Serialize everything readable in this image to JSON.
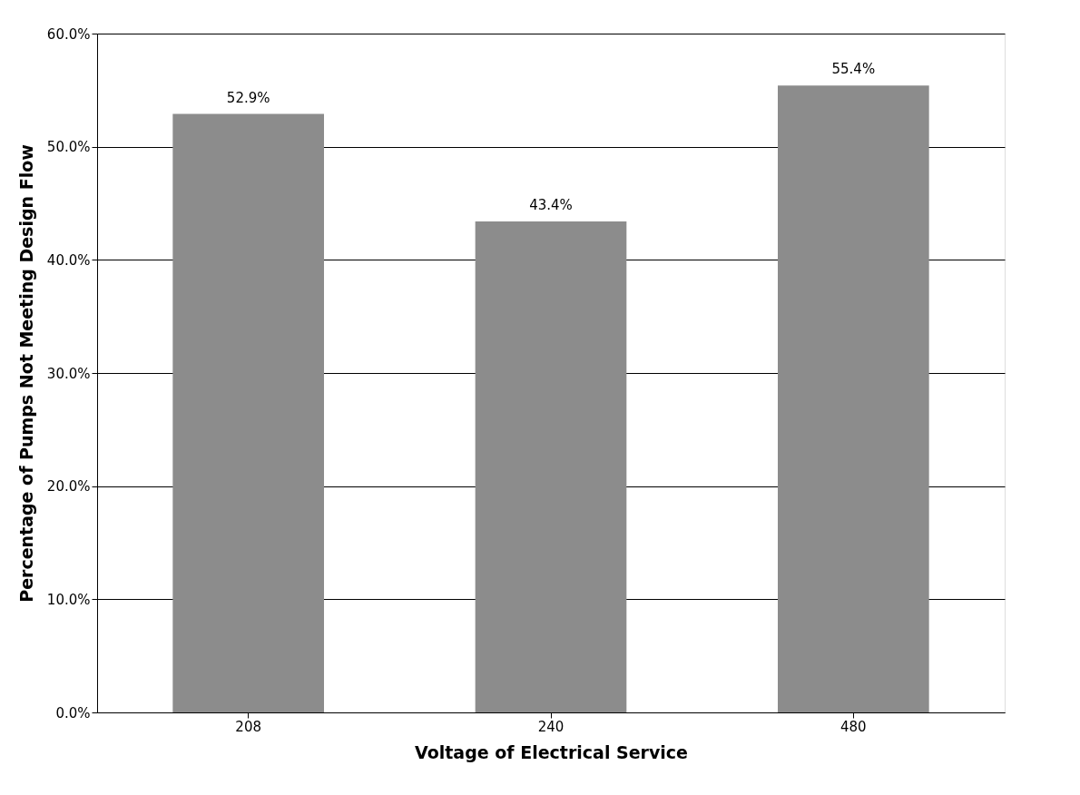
{
  "chart_data": {
    "type": "bar",
    "xlabel": "Voltage of Electrical Service",
    "ylabel": "Percentage of Pumps Not Meeting Design Flow",
    "categories": [
      "208",
      "240",
      "480"
    ],
    "values": [
      52.9,
      43.4,
      55.4
    ],
    "value_labels": [
      "52.9%",
      "43.4%",
      "55.4%"
    ],
    "color": "#8c8c8c",
    "ylim": [
      0,
      60
    ],
    "yticks": [
      {
        "value": 0,
        "label": "0.0%"
      },
      {
        "value": 10,
        "label": "10.0%"
      },
      {
        "value": 20,
        "label": "20.0%"
      },
      {
        "value": 30,
        "label": "30.0%"
      },
      {
        "value": 40,
        "label": "40.0%"
      },
      {
        "value": 50,
        "label": "50.0%"
      },
      {
        "value": 60,
        "label": "60.0%"
      }
    ],
    "grid": "y"
  }
}
